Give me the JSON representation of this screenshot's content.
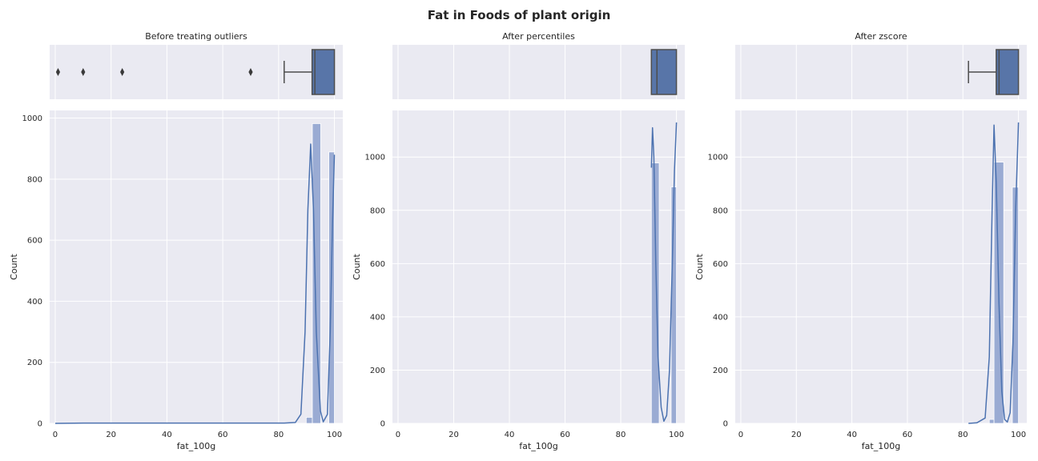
{
  "title": "Fat in Foods of plant origin",
  "chart_data": [
    {
      "type": "histogram+boxplot",
      "title": "Before treating outliers",
      "xlabel": "fat_100g",
      "ylabel": "Count",
      "xlim": [
        -2,
        103
      ],
      "ylim": [
        0,
        1025
      ],
      "xticks": [
        0,
        20,
        40,
        60,
        80,
        100
      ],
      "yticks": [
        0,
        200,
        400,
        600,
        800,
        1000
      ],
      "grid": true,
      "bins": [
        {
          "x0": 89.9,
          "x1": 92.1,
          "count": 20
        },
        {
          "x0": 92.1,
          "x1": 95.1,
          "count": 982
        },
        {
          "x0": 98.0,
          "x1": 100.0,
          "count": 889
        }
      ],
      "kde": [
        [
          0,
          0
        ],
        [
          10,
          1
        ],
        [
          24,
          1
        ],
        [
          70,
          1
        ],
        [
          82,
          1
        ],
        [
          86,
          3
        ],
        [
          88,
          30
        ],
        [
          89.5,
          300
        ],
        [
          90.5,
          700
        ],
        [
          91.5,
          915
        ],
        [
          92.5,
          700
        ],
        [
          93.5,
          300
        ],
        [
          95,
          40
        ],
        [
          96,
          5
        ],
        [
          97.5,
          30
        ],
        [
          98.5,
          300
        ],
        [
          99.3,
          650
        ],
        [
          100,
          880
        ]
      ],
      "boxplot": {
        "whisker_low": 82,
        "q1": 92,
        "median": 93,
        "q3": 100,
        "whisker_high": 100,
        "outliers": [
          1,
          10,
          24,
          70
        ]
      }
    },
    {
      "type": "histogram+boxplot",
      "title": "After percentiles",
      "xlabel": "fat_100g",
      "ylabel": "Count",
      "xlim": [
        -2,
        103
      ],
      "ylim": [
        0,
        1175
      ],
      "xticks": [
        0,
        20,
        40,
        60,
        80,
        100
      ],
      "yticks": [
        0,
        200,
        400,
        600,
        800,
        1000
      ],
      "grid": true,
      "bins": [
        {
          "x0": 91,
          "x1": 93.8,
          "count": 978
        },
        {
          "x0": 98.1,
          "x1": 100.0,
          "count": 888
        }
      ],
      "kde": [
        [
          91,
          960
        ],
        [
          91.4,
          1110
        ],
        [
          91.9,
          1000
        ],
        [
          92.6,
          600
        ],
        [
          93.4,
          250
        ],
        [
          94.5,
          60
        ],
        [
          95.5,
          8
        ],
        [
          96.5,
          30
        ],
        [
          97.5,
          200
        ],
        [
          98.5,
          600
        ],
        [
          99.3,
          950
        ],
        [
          100,
          1130
        ]
      ],
      "boxplot": {
        "whisker_low": 91,
        "q1": 91,
        "median": 93,
        "q3": 100,
        "whisker_high": 100,
        "outliers": []
      }
    },
    {
      "type": "histogram+boxplot",
      "title": "After zscore",
      "xlabel": "fat_100g",
      "ylabel": "Count",
      "xlim": [
        -2,
        103
      ],
      "ylim": [
        0,
        1175
      ],
      "xticks": [
        0,
        20,
        40,
        60,
        80,
        100
      ],
      "yticks": [
        0,
        200,
        400,
        600,
        800,
        1000
      ],
      "grid": true,
      "bins": [
        {
          "x0": 89.5,
          "x1": 91.2,
          "count": 15
        },
        {
          "x0": 91.2,
          "x1": 94.7,
          "count": 981
        },
        {
          "x0": 97.8,
          "x1": 100.0,
          "count": 887
        }
      ],
      "kde": [
        [
          82,
          0
        ],
        [
          85,
          2
        ],
        [
          88,
          20
        ],
        [
          89.5,
          250
        ],
        [
          90.5,
          800
        ],
        [
          91.2,
          1120
        ],
        [
          92,
          900
        ],
        [
          93,
          450
        ],
        [
          94,
          120
        ],
        [
          95,
          15
        ],
        [
          96,
          5
        ],
        [
          97,
          40
        ],
        [
          98,
          300
        ],
        [
          99,
          800
        ],
        [
          100,
          1130
        ]
      ],
      "boxplot": {
        "whisker_low": 82,
        "q1": 92,
        "median": 93,
        "q3": 100,
        "whisker_high": 100,
        "outliers": []
      }
    }
  ]
}
